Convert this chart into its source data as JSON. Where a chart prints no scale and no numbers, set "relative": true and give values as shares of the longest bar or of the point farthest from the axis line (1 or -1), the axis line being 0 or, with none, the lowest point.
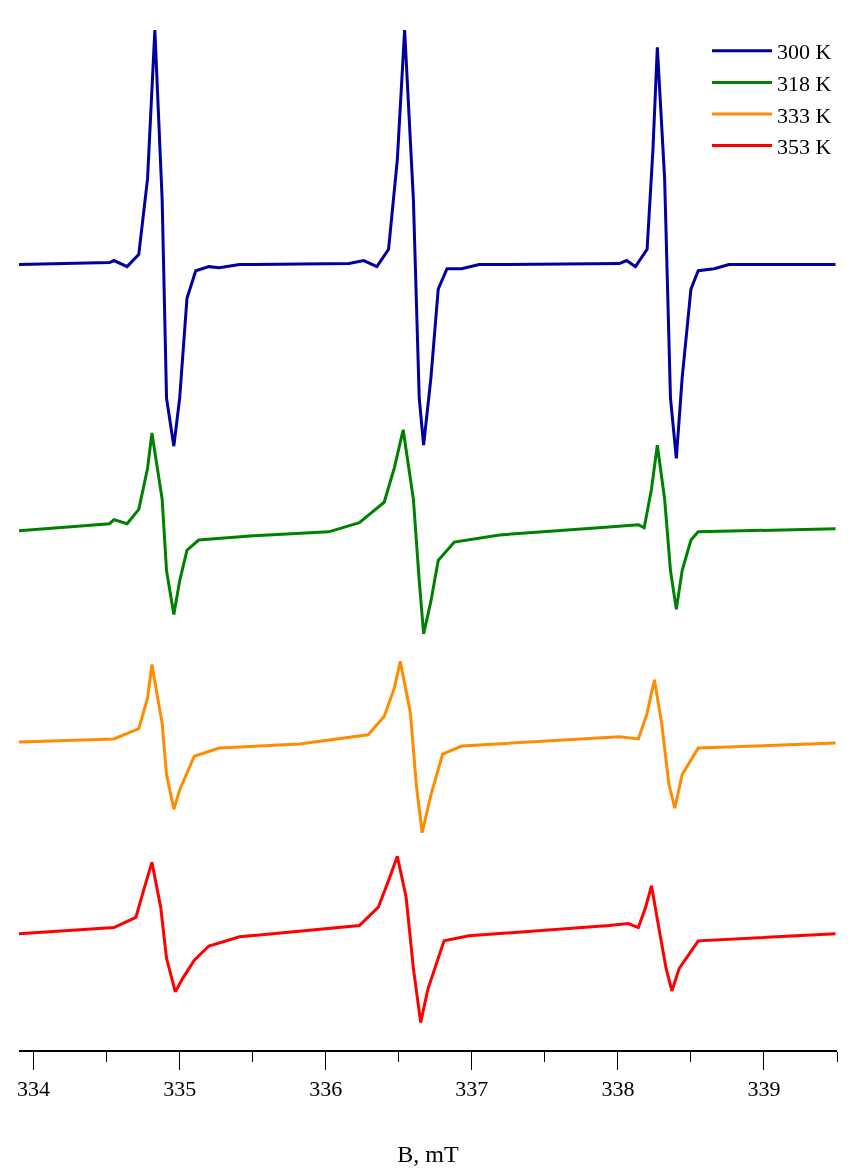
{
  "chart_data": {
    "type": "line",
    "xlabel": "B, mT",
    "relative": true,
    "legend": "top right",
    "marker": "none",
    "line_style": "solid",
    "xlim": [
      333.9,
      339.5
    ],
    "xticks": [
      334,
      {
        "value": 334.5,
        "label": null
      },
      335,
      {
        "value": 335.5,
        "label": null
      },
      336,
      {
        "value": 336.5,
        "label": null
      },
      337,
      {
        "value": 337.5,
        "label": null
      },
      338,
      {
        "value": 338.5,
        "label": null
      },
      339,
      {
        "value": 339.5,
        "label": null
      }
    ],
    "series": [
      {
        "name": "300 K",
        "color": "#00009e",
        "x": [
          333.9,
          334.52,
          334.55,
          334.64,
          334.72,
          334.78,
          334.83,
          334.88,
          334.91,
          334.96,
          335.0,
          335.05,
          335.11,
          335.2,
          335.27,
          335.41,
          336.16,
          336.26,
          336.35,
          336.43,
          336.49,
          336.54,
          336.6,
          336.64,
          336.67,
          336.72,
          336.77,
          336.83,
          336.93,
          337.05,
          338.01,
          338.06,
          338.12,
          338.2,
          338.24,
          338.27,
          338.32,
          338.36,
          338.4,
          338.44,
          338.5,
          338.55,
          338.66,
          338.76,
          339.49
        ],
        "values": [
          0.77,
          0.772,
          0.774,
          0.768,
          0.78,
          0.854,
          1.0,
          0.834,
          0.639,
          0.592,
          0.639,
          0.737,
          0.764,
          0.768,
          0.767,
          0.77,
          0.771,
          0.774,
          0.768,
          0.785,
          0.873,
          1.0,
          0.834,
          0.639,
          0.593,
          0.659,
          0.746,
          0.766,
          0.766,
          0.77,
          0.771,
          0.774,
          0.768,
          0.785,
          0.883,
          0.983,
          0.854,
          0.639,
          0.58,
          0.659,
          0.746,
          0.764,
          0.766,
          0.77,
          0.77
        ]
      },
      {
        "name": "318 K",
        "color": "#008000",
        "x": [
          333.9,
          334.52,
          334.55,
          334.64,
          334.72,
          334.78,
          334.81,
          334.88,
          334.91,
          334.96,
          335.0,
          335.05,
          335.13,
          335.48,
          336.02,
          336.23,
          336.4,
          336.47,
          336.53,
          336.6,
          336.64,
          336.67,
          336.72,
          336.77,
          336.88,
          337.19,
          337.87,
          338.14,
          338.18,
          338.23,
          338.27,
          338.32,
          338.36,
          338.4,
          338.44,
          338.5,
          338.55,
          339.49
        ],
        "values": [
          0.509,
          0.516,
          0.52,
          0.516,
          0.53,
          0.57,
          0.605,
          0.54,
          0.47,
          0.427,
          0.46,
          0.49,
          0.5,
          0.504,
          0.508,
          0.517,
          0.537,
          0.571,
          0.608,
          0.54,
          0.46,
          0.408,
          0.44,
          0.48,
          0.498,
          0.505,
          0.512,
          0.515,
          0.512,
          0.55,
          0.593,
          0.54,
          0.47,
          0.432,
          0.47,
          0.5,
          0.508,
          0.511
        ]
      },
      {
        "name": "333 K",
        "color": "#ff8c00",
        "x": [
          333.9,
          334.55,
          334.72,
          334.78,
          334.81,
          334.88,
          334.91,
          334.96,
          335.0,
          335.1,
          335.27,
          335.82,
          336.29,
          336.4,
          336.47,
          336.51,
          336.58,
          336.62,
          336.66,
          336.72,
          336.8,
          336.93,
          338.01,
          338.14,
          338.2,
          338.25,
          338.3,
          338.35,
          338.39,
          338.44,
          338.55,
          339.49
        ],
        "values": [
          0.302,
          0.305,
          0.315,
          0.345,
          0.378,
          0.32,
          0.27,
          0.236,
          0.255,
          0.288,
          0.296,
          0.3,
          0.309,
          0.327,
          0.355,
          0.381,
          0.33,
          0.26,
          0.213,
          0.25,
          0.29,
          0.298,
          0.307,
          0.305,
          0.33,
          0.363,
          0.32,
          0.26,
          0.237,
          0.27,
          0.296,
          0.301
        ]
      },
      {
        "name": "353 K",
        "color": "#ff0000",
        "x": [
          333.9,
          334.55,
          334.7,
          334.76,
          334.81,
          334.87,
          334.91,
          334.97,
          335.02,
          335.1,
          335.2,
          335.41,
          336.23,
          336.36,
          336.44,
          336.49,
          336.55,
          336.6,
          336.65,
          336.7,
          336.81,
          336.98,
          337.94,
          338.07,
          338.14,
          338.19,
          338.23,
          338.28,
          338.33,
          338.37,
          338.42,
          338.55,
          339.49
        ],
        "values": [
          0.114,
          0.12,
          0.13,
          0.16,
          0.184,
          0.14,
          0.09,
          0.057,
          0.07,
          0.088,
          0.102,
          0.111,
          0.122,
          0.14,
          0.17,
          0.19,
          0.15,
          0.08,
          0.027,
          0.06,
          0.107,
          0.112,
          0.122,
          0.124,
          0.12,
          0.14,
          0.161,
          0.12,
          0.08,
          0.058,
          0.08,
          0.107,
          0.114
        ]
      }
    ]
  }
}
